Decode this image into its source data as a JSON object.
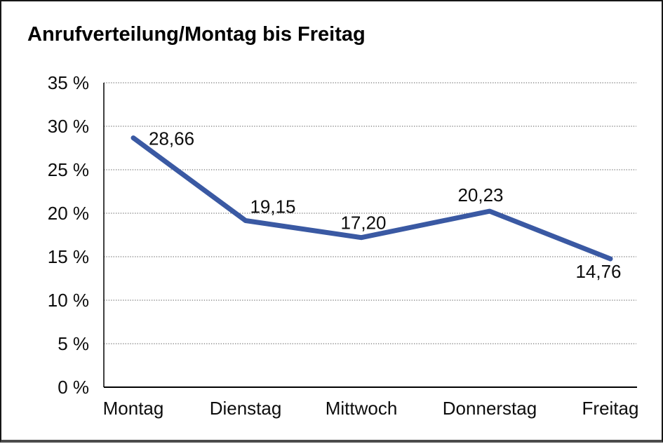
{
  "chart_data": {
    "type": "line",
    "title": "Anrufverteilung/Montag bis Freitag",
    "categories": [
      "Montag",
      "Dienstag",
      "Mittwoch",
      "Donnerstag",
      "Freitag"
    ],
    "values": [
      28.66,
      19.15,
      17.2,
      20.23,
      14.76
    ],
    "value_labels": [
      "28,66",
      "19,15",
      "17,20",
      "20,23",
      "14,76"
    ],
    "y_ticks": [
      0,
      5,
      10,
      15,
      20,
      25,
      30,
      35
    ],
    "y_tick_labels": [
      "0 %",
      "5 %",
      "10 %",
      "15 %",
      "20 %",
      "25 %",
      "30 %",
      "35 %"
    ],
    "ylim": [
      0,
      35
    ],
    "xlabel": "",
    "ylabel": "",
    "grid": "horizontal-dotted",
    "legend": "none",
    "line_color": "#3A59A3",
    "text_color": "#0d0d0d"
  }
}
